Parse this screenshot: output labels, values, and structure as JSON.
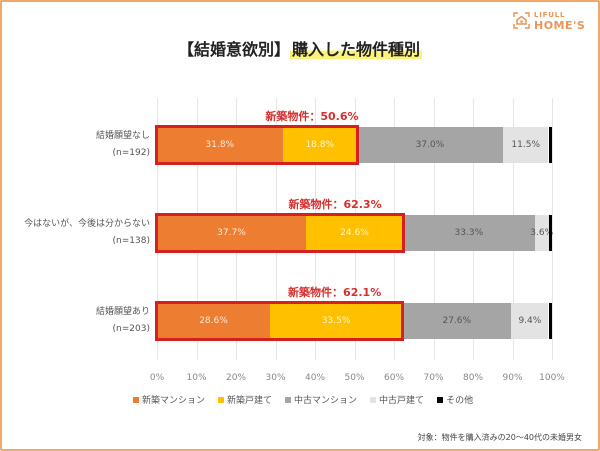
{
  "logo": {
    "top": "LIFULL",
    "bottom": "HOME'S"
  },
  "title": {
    "prefix": "【結婚意欲別】",
    "highlight": "購入した物件種別"
  },
  "note": "対象：物件を購入済みの20〜40代の未婚男女",
  "colors": {
    "new_mansion": "#ed7d31",
    "new_house": "#ffc000",
    "used_mansion": "#a5a5a5",
    "used_house": "#e3e3e3",
    "other": "#000000",
    "highlight_border": "#d42020",
    "annotation": "#d43030"
  },
  "chart_data": {
    "type": "bar",
    "orientation": "horizontal",
    "stacked": true,
    "title": "【結婚意欲別】購入した物件種別",
    "xlabel": "",
    "ylabel": "",
    "xlim": [
      0,
      100
    ],
    "x_ticks": [
      "0%",
      "10%",
      "20%",
      "30%",
      "40%",
      "50%",
      "60%",
      "70%",
      "80%",
      "90%",
      "100%"
    ],
    "grid": true,
    "legend_position": "bottom",
    "categories": [
      {
        "label": "結婚願望なし",
        "n": "(n=192)"
      },
      {
        "label": "今はないが、今後は分からない",
        "n": "(n=138)"
      },
      {
        "label": "結婚願望あり",
        "n": "(n=203)"
      }
    ],
    "series": [
      {
        "name": "新築マンション",
        "values": [
          31.8,
          37.7,
          28.6
        ],
        "labels": [
          "31.8%",
          "37.7%",
          "28.6%"
        ]
      },
      {
        "name": "新築戸建て",
        "values": [
          18.8,
          24.6,
          33.5
        ],
        "labels": [
          "18.8%",
          "24.6%",
          "33.5%"
        ]
      },
      {
        "name": "中古マンション",
        "values": [
          37.0,
          33.3,
          27.6
        ],
        "labels": [
          "37.0%",
          "33.3%",
          "27.6%"
        ]
      },
      {
        "name": "中古戸建て",
        "values": [
          11.5,
          3.6,
          9.4
        ],
        "labels": [
          "11.5%",
          "3.6%",
          "9.4%"
        ]
      },
      {
        "name": "その他",
        "values": [
          0.9,
          0.8,
          0.9
        ],
        "labels": [
          "",
          "",
          ""
        ]
      }
    ],
    "annotations": [
      {
        "text": "新築物件：50.6%",
        "value": 50.6
      },
      {
        "text": "新築物件：62.3%",
        "value": 62.3
      },
      {
        "text": "新築物件：62.1%",
        "value": 62.1
      }
    ]
  }
}
